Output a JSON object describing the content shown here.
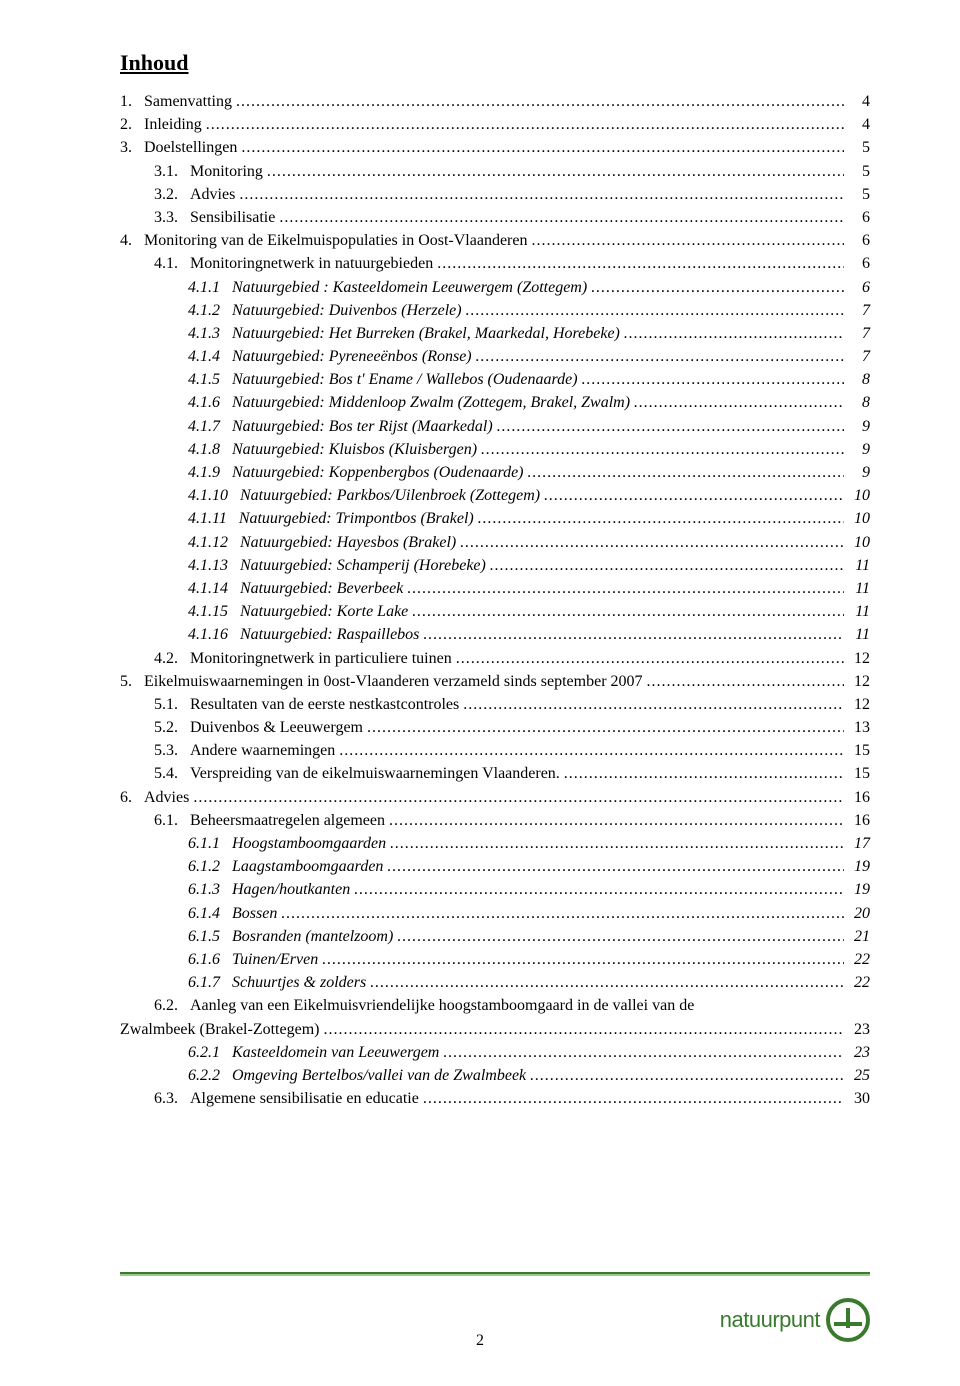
{
  "title": "Inhoud",
  "page_number": "2",
  "footer": {
    "line_color_top": "#3a7a2f",
    "line_color_bottom": "#9acb8e"
  },
  "logo": {
    "text": "natuurpunt",
    "color": "#3a7a2f"
  },
  "toc": [
    {
      "indent": 0,
      "italic": false,
      "num": "1.",
      "text": "Samenvatting",
      "page": "4"
    },
    {
      "indent": 0,
      "italic": false,
      "num": "2.",
      "text": "Inleiding",
      "page": "4"
    },
    {
      "indent": 0,
      "italic": false,
      "num": "3.",
      "text": "Doelstellingen",
      "page": "5"
    },
    {
      "indent": 1,
      "italic": false,
      "num": "3.1.",
      "text": "Monitoring",
      "page": "5"
    },
    {
      "indent": 1,
      "italic": false,
      "num": "3.2.",
      "text": "Advies",
      "page": "5"
    },
    {
      "indent": 1,
      "italic": false,
      "num": "3.3.",
      "text": "Sensibilisatie",
      "page": "6"
    },
    {
      "indent": 0,
      "italic": false,
      "num": "4.",
      "text": "Monitoring van de Eikelmuispopulaties in Oost-Vlaanderen",
      "page": "6"
    },
    {
      "indent": 1,
      "italic": false,
      "num": "4.1.",
      "text": "Monitoringnetwerk in natuurgebieden",
      "page": "6"
    },
    {
      "indent": 2,
      "italic": true,
      "num": "4.1.1",
      "text": "Natuurgebied : Kasteeldomein Leeuwergem (Zottegem)",
      "page": "6"
    },
    {
      "indent": 2,
      "italic": true,
      "num": "4.1.2",
      "text": "Natuurgebied: Duivenbos (Herzele)",
      "page": "7"
    },
    {
      "indent": 2,
      "italic": true,
      "num": "4.1.3",
      "text": "Natuurgebied: Het Burreken (Brakel, Maarkedal, Horebeke)",
      "page": "7"
    },
    {
      "indent": 2,
      "italic": true,
      "num": "4.1.4",
      "text": "Natuurgebied: Pyreneeënbos (Ronse)",
      "page": "7"
    },
    {
      "indent": 2,
      "italic": true,
      "num": "4.1.5",
      "text": "Natuurgebied: Bos t' Ename / Wallebos (Oudenaarde)",
      "page": "8"
    },
    {
      "indent": 2,
      "italic": true,
      "num": "4.1.6",
      "text": "Natuurgebied: Middenloop Zwalm (Zottegem, Brakel, Zwalm)",
      "page": "8"
    },
    {
      "indent": 2,
      "italic": true,
      "num": "4.1.7",
      "text": "Natuurgebied: Bos ter Rijst (Maarkedal)",
      "page": "9"
    },
    {
      "indent": 2,
      "italic": true,
      "num": "4.1.8",
      "text": "Natuurgebied: Kluisbos (Kluisbergen)",
      "page": "9"
    },
    {
      "indent": 2,
      "italic": true,
      "num": "4.1.9",
      "text": "Natuurgebied: Koppenbergbos (Oudenaarde)",
      "page": "9"
    },
    {
      "indent": 2,
      "italic": true,
      "num": "4.1.10",
      "text": "Natuurgebied: Parkbos/Uilenbroek (Zottegem)",
      "page": "10"
    },
    {
      "indent": 2,
      "italic": true,
      "num": "4.1.11",
      "text": "Natuurgebied: Trimpontbos (Brakel)",
      "page": "10"
    },
    {
      "indent": 2,
      "italic": true,
      "num": "4.1.12",
      "text": "Natuurgebied: Hayesbos (Brakel)",
      "page": "10"
    },
    {
      "indent": 2,
      "italic": true,
      "num": "4.1.13",
      "text": "Natuurgebied: Schamperij (Horebeke)",
      "page": "11"
    },
    {
      "indent": 2,
      "italic": true,
      "num": "4.1.14",
      "text": "Natuurgebied: Beverbeek",
      "page": "11"
    },
    {
      "indent": 2,
      "italic": true,
      "num": "4.1.15",
      "text": "Natuurgebied: Korte Lake",
      "page": "11"
    },
    {
      "indent": 2,
      "italic": true,
      "num": "4.1.16",
      "text": "Natuurgebied: Raspaillebos",
      "page": "11"
    },
    {
      "indent": 1,
      "italic": false,
      "num": "4.2.",
      "text": "Monitoringnetwerk in particuliere tuinen",
      "page": "12"
    },
    {
      "indent": 0,
      "italic": false,
      "num": "5.",
      "text": "Eikelmuiswaarnemingen in 0ost-Vlaanderen verzameld sinds september 2007",
      "page": "12"
    },
    {
      "indent": 1,
      "italic": false,
      "num": "5.1.",
      "text": "Resultaten van de eerste nestkastcontroles",
      "page": "12"
    },
    {
      "indent": 1,
      "italic": false,
      "num": "5.2.",
      "text": "Duivenbos & Leeuwergem",
      "page": "13"
    },
    {
      "indent": 1,
      "italic": false,
      "num": "5.3.",
      "text": "Andere waarnemingen",
      "page": "15"
    },
    {
      "indent": 1,
      "italic": false,
      "num": "5.4.",
      "text": "Verspreiding van de eikelmuiswaarnemingen Vlaanderen.",
      "page": "15"
    },
    {
      "indent": 0,
      "italic": false,
      "num": "6.",
      "text": "Advies",
      "page": "16"
    },
    {
      "indent": 1,
      "italic": false,
      "num": "6.1.",
      "text": "Beheersmaatregelen algemeen",
      "page": "16"
    },
    {
      "indent": 2,
      "italic": true,
      "num": "6.1.1",
      "text": "Hoogstamboomgaarden",
      "page": "17"
    },
    {
      "indent": 2,
      "italic": true,
      "num": "6.1.2",
      "text": "Laagstamboomgaarden",
      "page": "19"
    },
    {
      "indent": 2,
      "italic": true,
      "num": "6.1.3",
      "text": "Hagen/houtkanten",
      "page": "19"
    },
    {
      "indent": 2,
      "italic": true,
      "num": "6.1.4",
      "text": "Bossen",
      "page": "20"
    },
    {
      "indent": 2,
      "italic": true,
      "num": "6.1.5",
      "text": "Bosranden (mantelzoom)",
      "page": "21"
    },
    {
      "indent": 2,
      "italic": true,
      "num": "6.1.6",
      "text": "Tuinen/Erven",
      "page": "22"
    },
    {
      "indent": 2,
      "italic": true,
      "num": "6.1.7",
      "text": "Schuurtjes & zolders",
      "page": "22"
    },
    {
      "indent": 1,
      "italic": false,
      "num": "6.2.",
      "text": "Aanleg van een Eikelmuisvriendelijke hoogstamboomgaard in de vallei van de",
      "page": "",
      "nowrap_off": true
    },
    {
      "indent": 1,
      "italic": false,
      "num": "",
      "text": "Zwalmbeek (Brakel-Zottegem)",
      "page": "23",
      "continuation": true
    },
    {
      "indent": 2,
      "italic": true,
      "num": "6.2.1",
      "text": "Kasteeldomein van Leeuwergem",
      "page": "23"
    },
    {
      "indent": 2,
      "italic": true,
      "num": "6.2.2",
      "text": "Omgeving Bertelbos/vallei van de Zwalmbeek",
      "page": "25"
    },
    {
      "indent": 1,
      "italic": false,
      "num": "6.3.",
      "text": "Algemene sensibilisatie en educatie",
      "page": "30"
    }
  ]
}
